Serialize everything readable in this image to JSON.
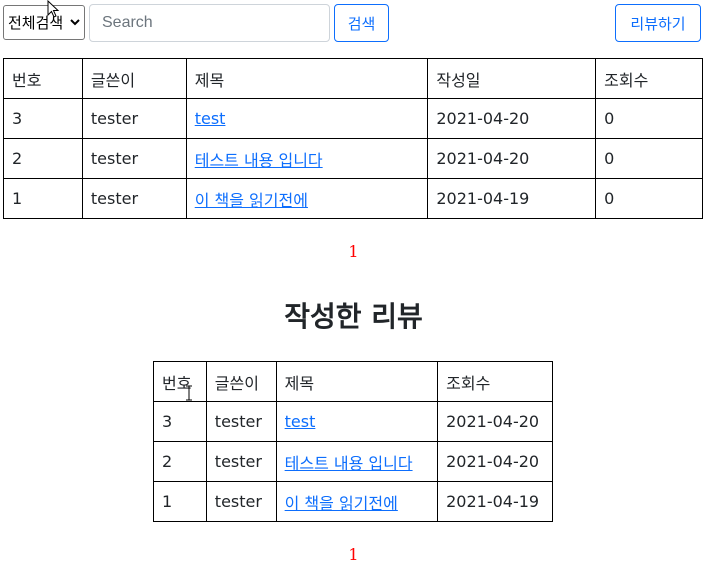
{
  "search": {
    "filter_selected": "전체검색",
    "placeholder": "Search",
    "search_button": "검색",
    "review_button": "리뷰하기"
  },
  "board": {
    "headers": [
      "번호",
      "글쓴이",
      "제목",
      "작성일",
      "조회수"
    ],
    "rows": [
      {
        "no": "3",
        "author": "tester",
        "title": "test",
        "date": "2021-04-20",
        "views": "0"
      },
      {
        "no": "2",
        "author": "tester",
        "title": "테스트 내용 입니다",
        "date": "2021-04-20",
        "views": "0"
      },
      {
        "no": "1",
        "author": "tester",
        "title": "이 책을 읽기전에",
        "date": "2021-04-19",
        "views": "0"
      }
    ],
    "page": "1"
  },
  "my_reviews": {
    "title": "작성한 리뷰",
    "headers": [
      "번호",
      "글쓴이",
      "제목",
      "조회수"
    ],
    "rows": [
      {
        "no": "3",
        "author": "tester",
        "title": "test",
        "date": "2021-04-20"
      },
      {
        "no": "2",
        "author": "tester",
        "title": "테스트 내용 입니다",
        "date": "2021-04-20"
      },
      {
        "no": "1",
        "author": "tester",
        "title": "이 책을 읽기전에",
        "date": "2021-04-19"
      }
    ],
    "page": "1"
  },
  "colors": {
    "link": "#0d6efd",
    "pager": "#ff0000",
    "button_outline": "#0d6efd"
  }
}
